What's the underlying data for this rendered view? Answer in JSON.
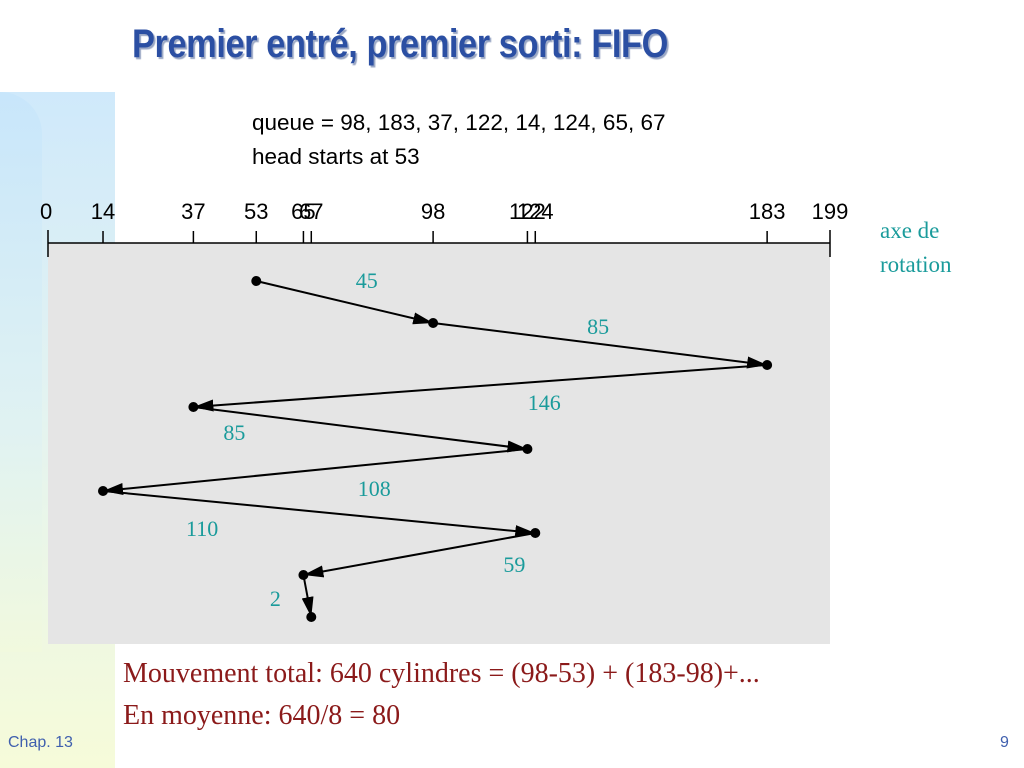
{
  "slide": {
    "title": "Premier entré, premier sorti: FIFO",
    "queue_line": "queue = 98, 183, 37, 122, 14, 124, 65, 67",
    "head_line": "head starts at 53",
    "axis_note_line1": "axe de",
    "axis_note_line2": "rotation",
    "summary_line1": "Mouvement total: 640 cylindres = (98-53) + (183-98)+...",
    "summary_line2": "En moyenne: 640/8 = 80",
    "footer_chapter": "Chap. 13",
    "footer_page": "9"
  },
  "diagram": {
    "axis_min": 0,
    "axis_max": 199,
    "ticks": [
      {
        "value": 0,
        "label": "0"
      },
      {
        "value": 14,
        "label": "14"
      },
      {
        "value": 37,
        "label": "37"
      },
      {
        "value": 53,
        "label": "53"
      },
      {
        "value": 65,
        "label": "65"
      },
      {
        "value": 67,
        "label": "67"
      },
      {
        "value": 98,
        "label": "98"
      },
      {
        "value": 122,
        "label": "122"
      },
      {
        "value": 124,
        "label": "124"
      },
      {
        "value": 183,
        "label": "183"
      },
      {
        "value": 199,
        "label": "199"
      }
    ],
    "head_path": [
      53,
      98,
      183,
      37,
      122,
      14,
      124,
      65,
      67
    ],
    "movements": [
      {
        "from": 53,
        "to": 98,
        "label": "45"
      },
      {
        "from": 98,
        "to": 183,
        "label": "85"
      },
      {
        "from": 183,
        "to": 37,
        "label": "146"
      },
      {
        "from": 37,
        "to": 122,
        "label": "85"
      },
      {
        "from": 122,
        "to": 14,
        "label": "108"
      },
      {
        "from": 14,
        "to": 124,
        "label": "110"
      },
      {
        "from": 124,
        "to": 65,
        "label": "59"
      },
      {
        "from": 65,
        "to": 67,
        "label": "2"
      }
    ],
    "colors": {
      "panel": "#e5e5e5",
      "lines": "#000000",
      "movement_labels": "#1a9b9b"
    }
  }
}
